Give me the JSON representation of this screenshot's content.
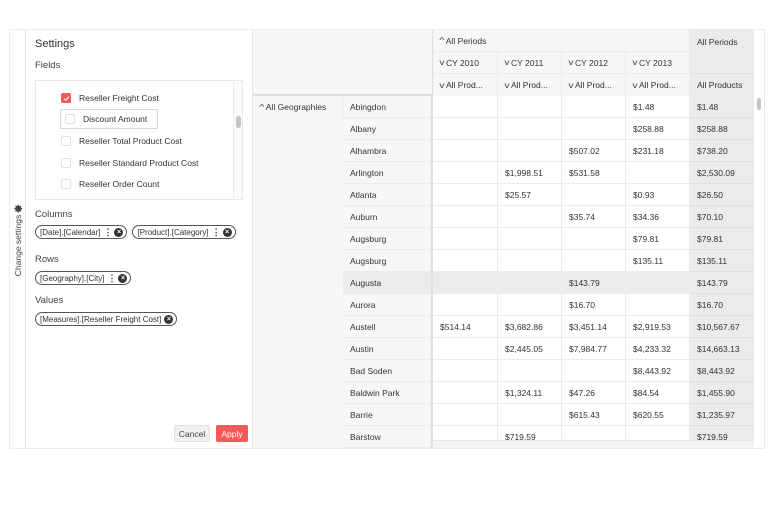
{
  "sidebar_tab": {
    "label": "Change settings",
    "icon": "gear-icon"
  },
  "settings": {
    "title": "Settings",
    "fields_label": "Fields",
    "fields": [
      {
        "label": "Reseller Freight Cost",
        "checked": true,
        "focused": false
      },
      {
        "label": "Discount Amount",
        "checked": false,
        "focused": true
      },
      {
        "label": "Reseller Total Product Cost",
        "checked": false,
        "focused": false
      },
      {
        "label": "Reseller Standard Product Cost",
        "checked": false,
        "focused": false
      },
      {
        "label": "Reseller Order Count",
        "checked": false,
        "focused": false
      }
    ],
    "columns_label": "Columns",
    "columns": [
      "[Date].[Calendar]",
      "[Product].[Category]"
    ],
    "rows_label": "Rows",
    "rows": [
      "[Geography].[City]"
    ],
    "values_label": "Values",
    "values": [
      "[Measures].[Reseller Freight Cost]"
    ],
    "cancel_label": "Cancel",
    "apply_label": "Apply",
    "accent_color": "#f35957"
  },
  "grid": {
    "col_header_top": "All Periods",
    "years": [
      "CY 2010",
      "CY 2011",
      "CY 2012",
      "CY 2013"
    ],
    "product_headers": [
      "All Prod...",
      "All Prod...",
      "All Prod...",
      "All Prod..."
    ],
    "total_header_top": "All Periods",
    "total_header_bottom": "All Products",
    "row_root": "All Geographies",
    "rows": [
      {
        "city": "Abingdon",
        "values": [
          "",
          "",
          "",
          "$1.48"
        ],
        "total": "$1.48"
      },
      {
        "city": "Albany",
        "values": [
          "",
          "",
          "",
          "$258.88"
        ],
        "total": "$258.88"
      },
      {
        "city": "Alhambra",
        "values": [
          "",
          "",
          "$507.02",
          "$231.18"
        ],
        "total": "$738.20"
      },
      {
        "city": "Arlington",
        "values": [
          "",
          "$1,998.51",
          "$531.58",
          ""
        ],
        "total": "$2,530.09"
      },
      {
        "city": "Atlanta",
        "values": [
          "",
          "$25.57",
          "",
          "$0.93"
        ],
        "total": "$26.50"
      },
      {
        "city": "Auburn",
        "values": [
          "",
          "",
          "$35.74",
          "$34.36"
        ],
        "total": "$70.10"
      },
      {
        "city": "Augsburg",
        "values": [
          "",
          "",
          "",
          "$79.81"
        ],
        "total": "$79.81"
      },
      {
        "city": "Augsburg",
        "values": [
          "",
          "",
          "",
          "$135.11"
        ],
        "total": "$135.11"
      },
      {
        "city": "Augusta",
        "values": [
          "",
          "",
          "$143.79",
          ""
        ],
        "total": "$143.79",
        "highlighted": true
      },
      {
        "city": "Aurora",
        "values": [
          "",
          "",
          "$16.70",
          ""
        ],
        "total": "$16.70"
      },
      {
        "city": "Austell",
        "values": [
          "$514.14",
          "$3,682.86",
          "$3,451.14",
          "$2,919.53"
        ],
        "total": "$10,567.67"
      },
      {
        "city": "Austin",
        "values": [
          "",
          "$2,445.05",
          "$7,984.77",
          "$4,233.32"
        ],
        "total": "$14,663.13"
      },
      {
        "city": "Bad Soden",
        "values": [
          "",
          "",
          "",
          "$8,443.92"
        ],
        "total": "$8,443.92"
      },
      {
        "city": "Baldwin Park",
        "values": [
          "",
          "$1,324.11",
          "$47.26",
          "$84.54"
        ],
        "total": "$1,455.90"
      },
      {
        "city": "Barrie",
        "values": [
          "",
          "",
          "$615.43",
          "$620.55"
        ],
        "total": "$1,235.97"
      },
      {
        "city": "Barstow",
        "values": [
          "",
          "$719.59",
          "",
          ""
        ],
        "total": "$719.59"
      }
    ]
  }
}
